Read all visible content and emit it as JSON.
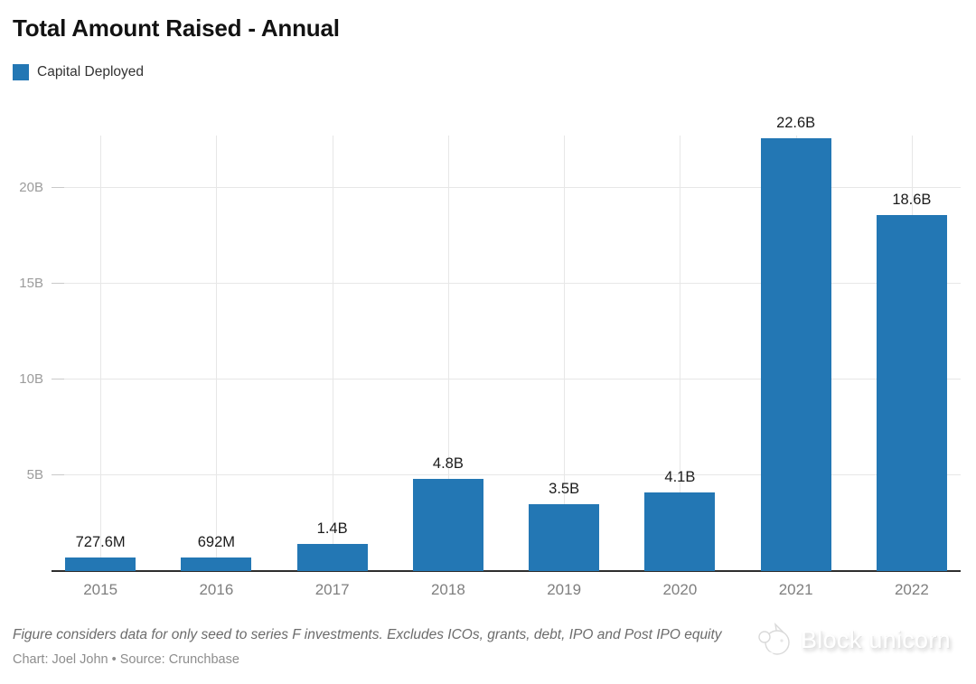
{
  "header": {
    "title": "Total Amount Raised - Annual",
    "legend_label": "Capital Deployed"
  },
  "chart_data": {
    "type": "bar",
    "title": "Total Amount Raised - Annual",
    "categories": [
      "2015",
      "2016",
      "2017",
      "2018",
      "2019",
      "2020",
      "2021",
      "2022"
    ],
    "series": [
      {
        "name": "Capital Deployed",
        "values": [
          0.7276,
          0.692,
          1.4,
          4.8,
          3.5,
          4.1,
          22.6,
          18.6
        ]
      }
    ],
    "value_labels": [
      "727.6M",
      "692M",
      "1.4B",
      "4.8B",
      "3.5B",
      "4.1B",
      "22.6B",
      "18.6B"
    ],
    "unit": "USD (B = billions, M = millions)",
    "xlabel": "",
    "ylabel": "",
    "ylim": [
      0,
      22.75
    ],
    "yticks": [
      5,
      10,
      15,
      20
    ],
    "ytick_labels": [
      "5B",
      "10B",
      "15B",
      "20B"
    ],
    "grid": true,
    "legend_position": "top-left",
    "bar_color": "#2377b4"
  },
  "footer": {
    "note": "Figure considers data for only seed to series F investments. Excludes ICOs, grants, debt, IPO and Post IPO equity",
    "credit": "Chart: Joel John • Source: Crunchbase",
    "watermark": "Block unicorn"
  },
  "colors": {
    "bar": "#2377b4",
    "grid": "#e7e7e7",
    "axis_line": "#2e2e2e",
    "tick_label": "#9c9c9c",
    "year_label": "#7f7f7f",
    "value_label": "#1b1b1b"
  }
}
